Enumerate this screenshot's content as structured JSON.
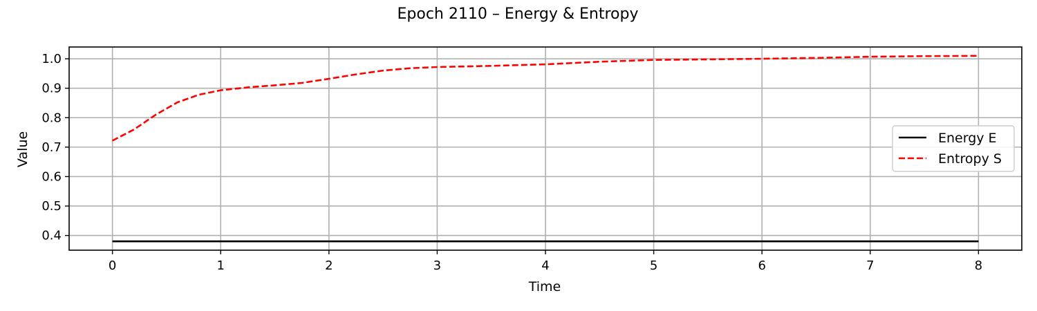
{
  "chart_data": {
    "type": "line",
    "title": "Epoch 2110 – Energy & Entropy",
    "xlabel": "Time",
    "ylabel": "Value",
    "xlim": [
      -0.4,
      8.4
    ],
    "ylim": [
      0.35,
      1.04
    ],
    "xticks": [
      0,
      1,
      2,
      3,
      4,
      5,
      6,
      7,
      8
    ],
    "yticks": [
      0.4,
      0.5,
      0.6,
      0.7,
      0.8,
      0.9,
      1.0
    ],
    "grid": true,
    "legend_position": "center-right",
    "series": [
      {
        "name": "Energy E",
        "color": "#000000",
        "line_style": "solid",
        "x": [
          0,
          1,
          2,
          3,
          4,
          5,
          6,
          7,
          8
        ],
        "y": [
          0.38,
          0.38,
          0.38,
          0.38,
          0.38,
          0.38,
          0.38,
          0.38,
          0.38
        ]
      },
      {
        "name": "Entropy S",
        "color": "#ff0000",
        "line_style": "dashed",
        "x": [
          0,
          0.2,
          0.4,
          0.6,
          0.8,
          1.0,
          1.25,
          1.5,
          1.75,
          2.0,
          2.25,
          2.5,
          2.75,
          3.0,
          3.5,
          4.0,
          4.5,
          5.0,
          5.5,
          6.0,
          6.5,
          7.0,
          7.5,
          8.0
        ],
        "y": [
          0.722,
          0.76,
          0.81,
          0.852,
          0.878,
          0.893,
          0.903,
          0.91,
          0.918,
          0.932,
          0.947,
          0.96,
          0.968,
          0.972,
          0.976,
          0.981,
          0.99,
          0.996,
          0.998,
          1.0,
          1.003,
          1.007,
          1.009,
          1.01
        ]
      }
    ]
  }
}
